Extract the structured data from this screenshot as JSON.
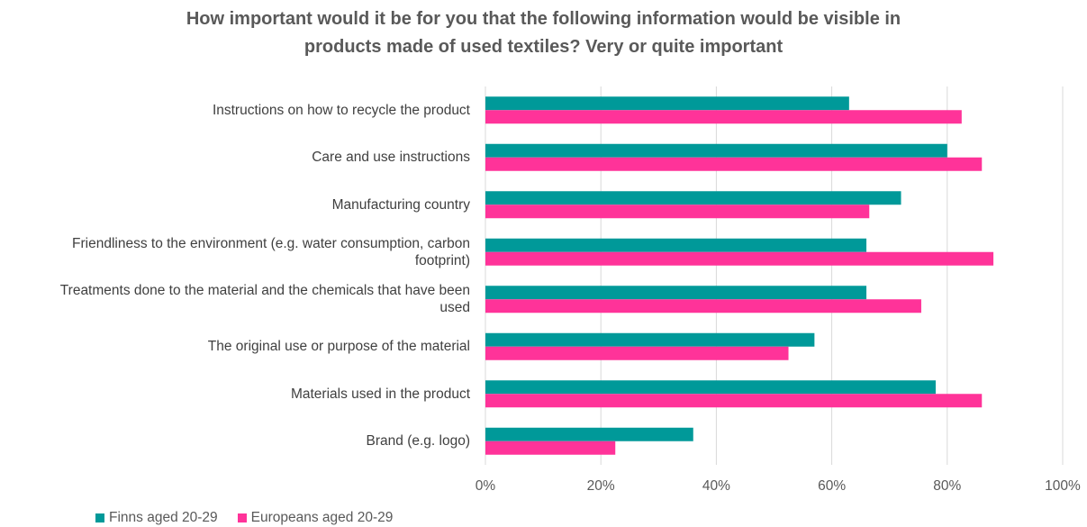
{
  "chart_data": {
    "type": "bar",
    "orientation": "horizontal",
    "title": "How important would it be for you that the following information would be visible in products made of used textiles? Very or quite important",
    "title_lines": [
      "How important would it be for you that the following information would be visible in",
      "products made of used textiles? Very or quite important"
    ],
    "categories": [
      [
        "Instructions on how to recycle the product"
      ],
      [
        "Care and use instructions"
      ],
      [
        "Manufacturing country"
      ],
      [
        "Friendliness to the environment (e.g. water consumption, carbon",
        "footprint)"
      ],
      [
        "Treatments done to the material and the chemicals that have been",
        "used"
      ],
      [
        "The original use or purpose of the material"
      ],
      [
        "Materials used in the product"
      ],
      [
        "Brand (e.g. logo)"
      ]
    ],
    "series": [
      {
        "name": "Finns aged 20-29",
        "color": "#009999",
        "values": [
          63,
          80,
          72,
          66,
          66,
          57,
          78,
          36
        ]
      },
      {
        "name": "Europeans aged 20-29",
        "color": "#FF3399",
        "values": [
          82.5,
          86,
          66.5,
          88,
          75.5,
          52.5,
          86,
          22.5
        ]
      }
    ],
    "xlim": [
      0,
      100
    ],
    "xticks": [
      "0%",
      "20%",
      "40%",
      "60%",
      "80%",
      "100%"
    ],
    "grid": true,
    "legend_position": "bottom-left"
  }
}
